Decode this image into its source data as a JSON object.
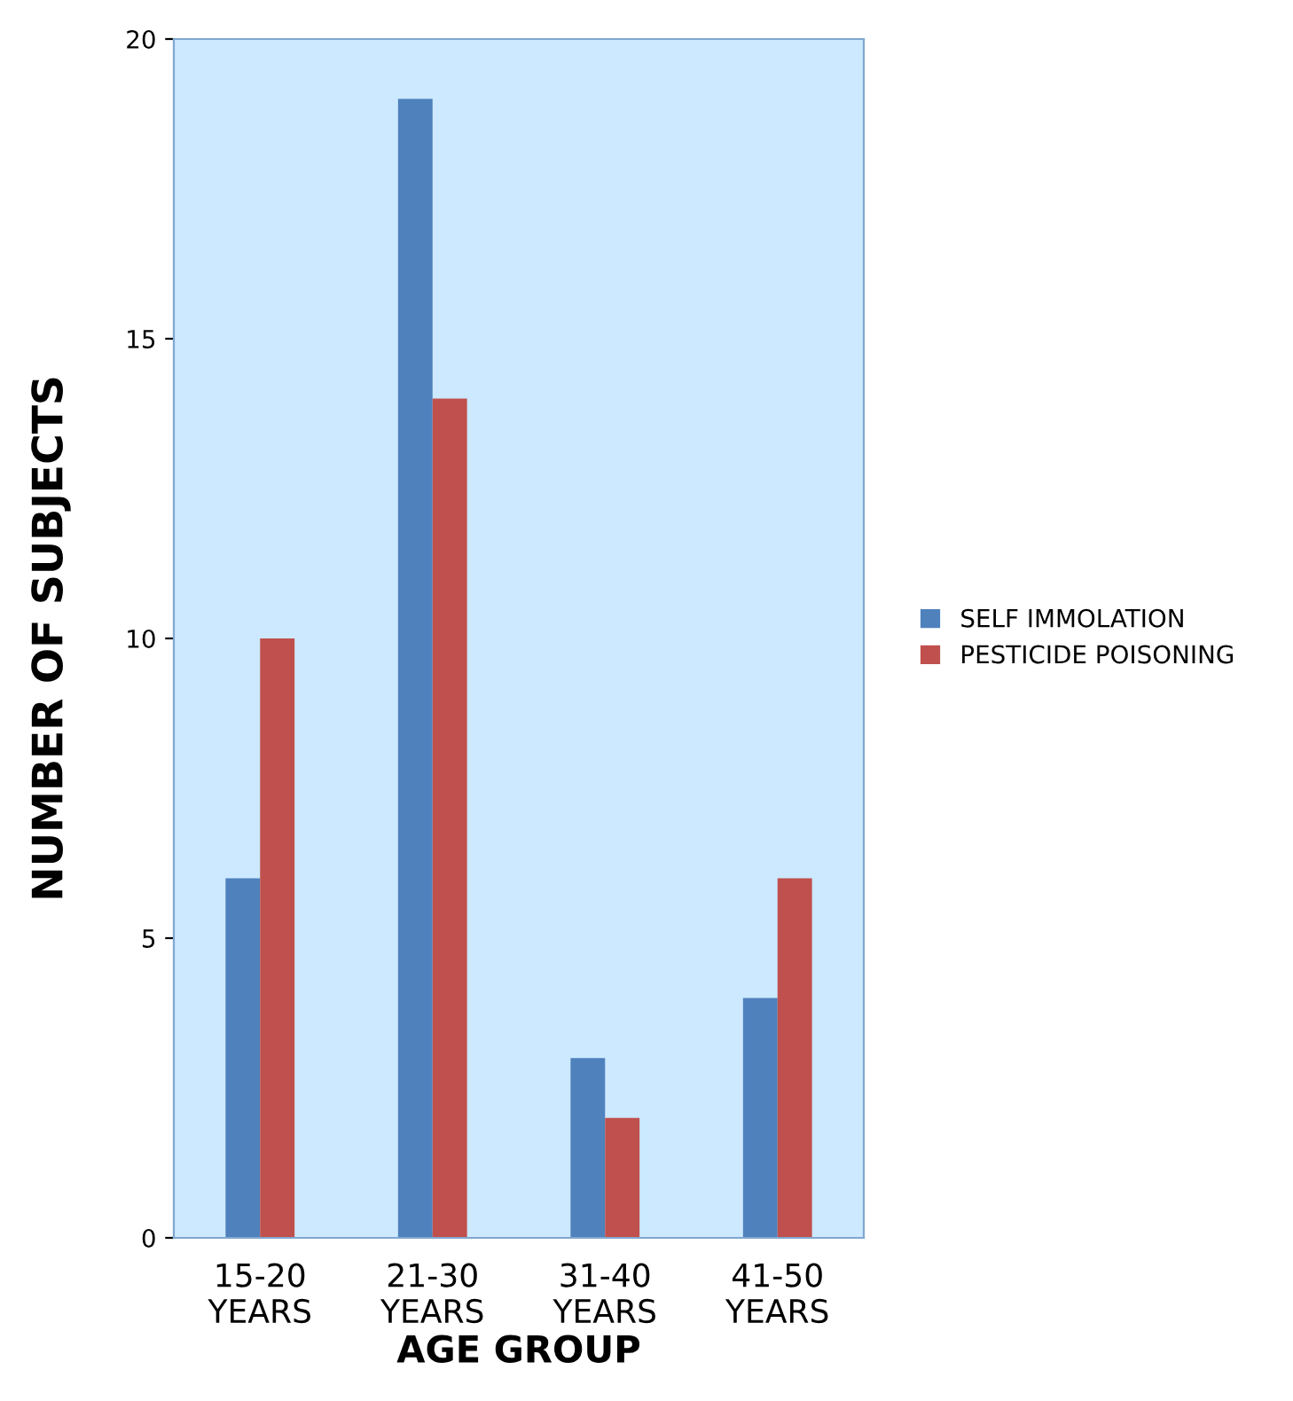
{
  "chart_data": {
    "type": "bar",
    "xlabel": "AGE GROUP",
    "ylabel": "NUMBER OF SUBJECTS",
    "categories": [
      "15-20 YEARS",
      "21-30 YEARS",
      "31-40 YEARS",
      "41-50 YEARS"
    ],
    "series": [
      {
        "name": "SELF IMMOLATION",
        "color": "#4f81bd",
        "values": [
          6,
          19,
          3,
          4
        ]
      },
      {
        "name": "PESTICIDE POISONING",
        "color": "#c0504d",
        "values": [
          10,
          14,
          2,
          6
        ]
      }
    ],
    "ylim": [
      0,
      20
    ],
    "yticks": [
      0,
      5,
      10,
      15,
      20
    ],
    "grid": false,
    "legend": "right"
  }
}
